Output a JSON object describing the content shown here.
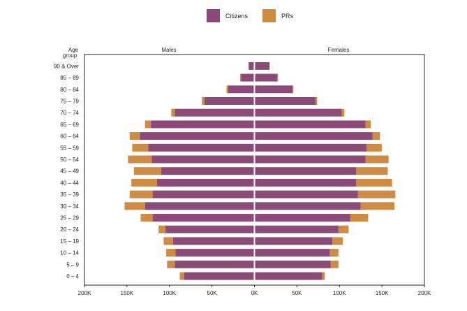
{
  "chart_data": {
    "type": "bar",
    "orientation": "horizontal-population-pyramid",
    "title": "",
    "age_axis_label": "Age group",
    "left_panel_label": "Males",
    "right_panel_label": "Females",
    "categories": [
      "0 – 4",
      "5 – 9",
      "10 – 14",
      "15 – 19",
      "20 – 24",
      "25 – 29",
      "30 – 34",
      "35 – 39",
      "40 – 44",
      "45 – 49",
      "50 – 54",
      "55 – 59",
      "60 – 64",
      "65 – 69",
      "70 – 74",
      "75 – 79",
      "80 – 84",
      "85 – 89",
      "90 & Over"
    ],
    "x_tick_labels": [
      "200K",
      "150K",
      "100K",
      "50K",
      "0K",
      "50K",
      "100K",
      "150K",
      "200K"
    ],
    "xlim": [
      -200000,
      200000
    ],
    "legend_position": "top-center",
    "series": [
      {
        "name": "Citizens",
        "color": "#8B4A78",
        "males": [
          82000,
          93000,
          92000,
          95000,
          104000,
          119000,
          128000,
          119000,
          114000,
          109000,
          120000,
          124000,
          134000,
          121000,
          93000,
          58000,
          30000,
          15000,
          6000
        ],
        "females": [
          79000,
          89000,
          88000,
          91000,
          98000,
          112000,
          124000,
          121000,
          119000,
          119000,
          130000,
          131000,
          138000,
          130000,
          102000,
          71000,
          44000,
          26000,
          17000
        ]
      },
      {
        "name": "PRs",
        "color": "#CF8A44",
        "males": [
          5000,
          9000,
          11000,
          11000,
          8000,
          14000,
          24000,
          27000,
          30000,
          32000,
          28000,
          19000,
          12000,
          7000,
          4000,
          3000,
          2000,
          1000,
          0
        ],
        "females": [
          3000,
          9000,
          10000,
          12000,
          12000,
          21000,
          40000,
          44000,
          42000,
          37000,
          27000,
          18000,
          9000,
          6000,
          3000,
          2000,
          1000,
          1000,
          0
        ]
      }
    ]
  }
}
